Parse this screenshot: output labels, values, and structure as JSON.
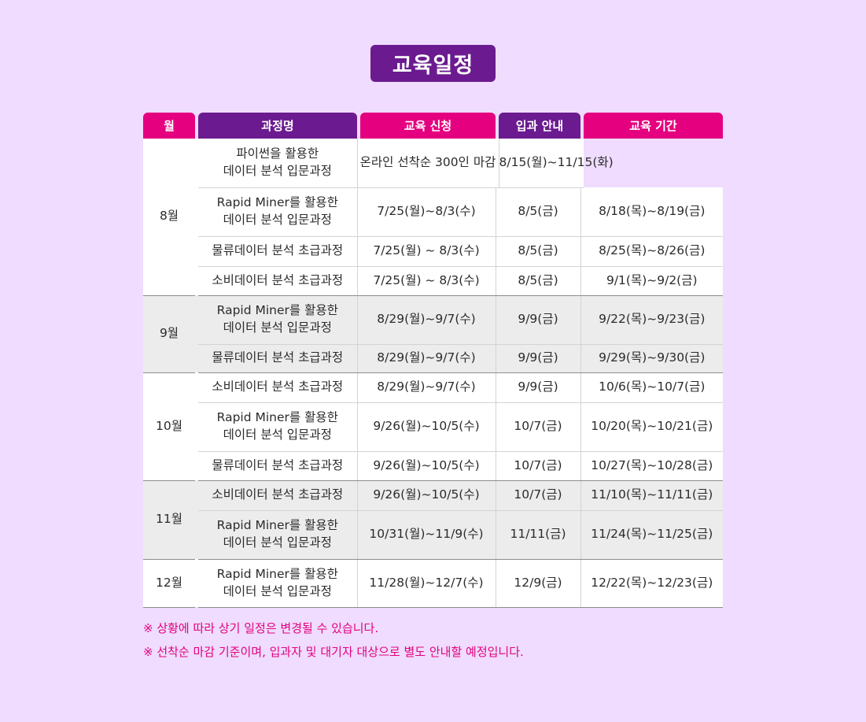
{
  "title": "교육일정",
  "headers": [
    "월",
    "과정명",
    "교육 신청",
    "입과 안내",
    "교육 기간"
  ],
  "colors": {
    "background": "#efdcfe",
    "title_bg": "#6b1b8f",
    "header_pink": "#e4007f",
    "header_purple": "#6b1b8f",
    "note_text": "#e4007f"
  },
  "rows": [
    {
      "month": "8월",
      "course": "파이썬을 활용한\n데이터 분석 입문과정",
      "merged": "온라인 선착순 300인 마감",
      "period": "8/15(월)~11/15(화)"
    },
    {
      "course": "Rapid Miner를 활용한\n데이터 분석 입문과정",
      "apply": "7/25(월)~8/3(수)",
      "guide": "8/5(금)",
      "period": "8/18(목)~8/19(금)"
    },
    {
      "course": "물류데이터 분석 초급과정",
      "apply": "7/25(월) ~ 8/3(수)",
      "guide": "8/5(금)",
      "period": "8/25(목)~8/26(금)"
    },
    {
      "course": "소비데이터 분석 초급과정",
      "apply": "7/25(월) ~ 8/3(수)",
      "guide": "8/5(금)",
      "period": "9/1(목)~9/2(금)"
    },
    {
      "month": "9월",
      "course": "Rapid Miner를 활용한\n데이터 분석 입문과정",
      "apply": "8/29(월)~9/7(수)",
      "guide": "9/9(금)",
      "period": "9/22(목)~9/23(금)"
    },
    {
      "course": "물류데이터 분석 초급과정",
      "apply": "8/29(월)~9/7(수)",
      "guide": "9/9(금)",
      "period": "9/29(목)~9/30(금)"
    },
    {
      "month": "10월",
      "course": "소비데이터 분석 초급과정",
      "apply": "8/29(월)~9/7(수)",
      "guide": "9/9(금)",
      "period": "10/6(목)~10/7(금)"
    },
    {
      "course": "Rapid Miner를 활용한\n데이터 분석 입문과정",
      "apply": "9/26(월)~10/5(수)",
      "guide": "10/7(금)",
      "period": "10/20(목)~10/21(금)"
    },
    {
      "course": "물류데이터 분석 초급과정",
      "apply": "9/26(월)~10/5(수)",
      "guide": "10/7(금)",
      "period": "10/27(목)~10/28(금)"
    },
    {
      "month": "11월",
      "course": "소비데이터 분석 초급과정",
      "apply": "9/26(월)~10/5(수)",
      "guide": "10/7(금)",
      "period": "11/10(목)~11/11(금)"
    },
    {
      "course": "Rapid Miner를 활용한\n데이터 분석 입문과정",
      "apply": "10/31(월)~11/9(수)",
      "guide": "11/11(금)",
      "period": "11/24(목)~11/25(금)"
    },
    {
      "month": "12월",
      "course": "Rapid Miner를 활용한\n데이터 분석 입문과정",
      "apply": "11/28(월)~12/7(수)",
      "guide": "12/9(금)",
      "period": "12/22(목)~12/23(금)"
    }
  ],
  "notes": [
    "※ 상황에 따라 상기 일정은 변경될 수 있습니다.",
    "※ 선착순 마감 기준이며, 입과자 및 대기자 대상으로 별도 안내할 예정입니다."
  ]
}
